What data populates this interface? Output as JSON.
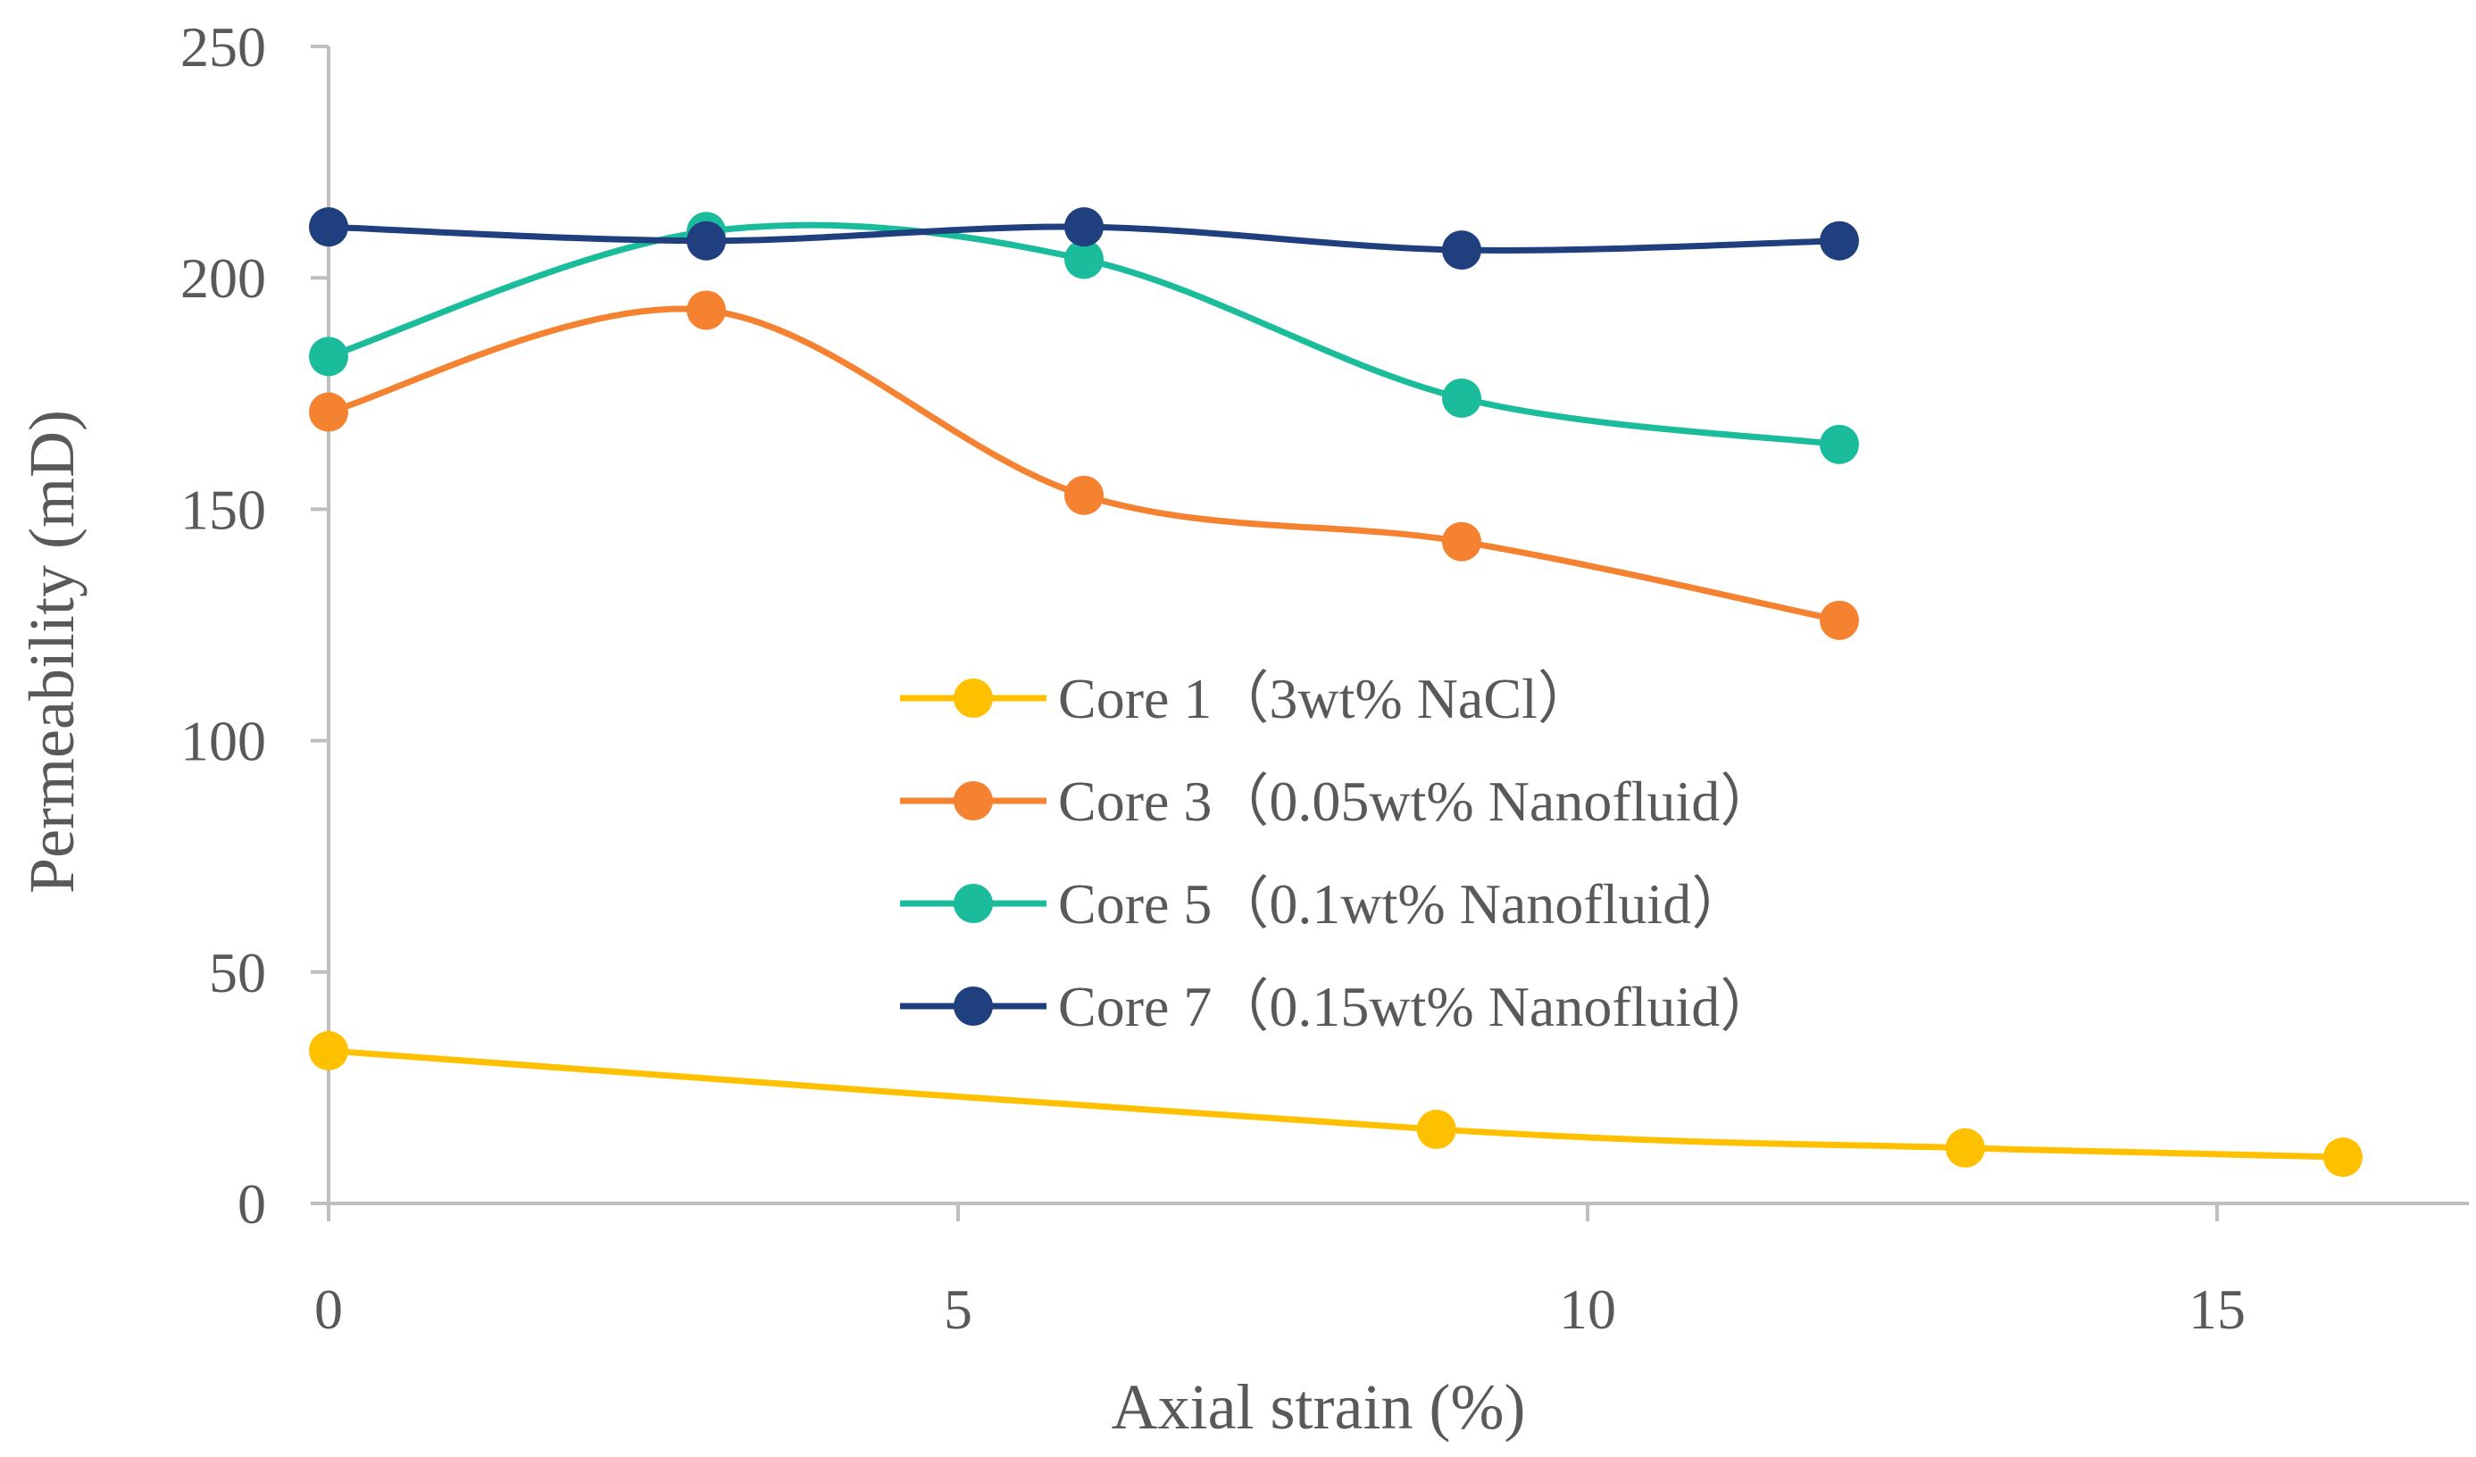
{
  "chart_data": {
    "type": "line",
    "title": "",
    "xlabel": "Axial strain (%)",
    "ylabel": "Permeability (mD)",
    "xlim": [
      0,
      17
    ],
    "ylim": [
      0,
      250
    ],
    "xticks": [
      0,
      5,
      10,
      15
    ],
    "yticks": [
      0,
      50,
      100,
      150,
      200,
      250
    ],
    "grid": false,
    "legend_position": "center",
    "series": [
      {
        "name": "Core 1（3wt% NaCl）",
        "color": "#FFC000",
        "x": [
          0,
          8.8,
          13,
          16
        ],
        "y": [
          33,
          16,
          12,
          10
        ]
      },
      {
        "name": "Core 3（0.05wt% Nanofluid）",
        "color": "#F58231",
        "x": [
          0,
          3,
          6,
          9,
          12
        ],
        "y": [
          171,
          193,
          153,
          143,
          126
        ]
      },
      {
        "name": "Core 5（0.1wt% Nanofluid）",
        "color": "#1ABC9C",
        "x": [
          0,
          3,
          6,
          9,
          12
        ],
        "y": [
          183,
          210,
          204,
          174,
          164
        ]
      },
      {
        "name": "Core 7（0.15wt% Nanofluid）",
        "color": "#1F3F7F",
        "x": [
          0,
          3,
          6,
          9,
          12
        ],
        "y": [
          211,
          208,
          211,
          206,
          208
        ]
      }
    ]
  }
}
